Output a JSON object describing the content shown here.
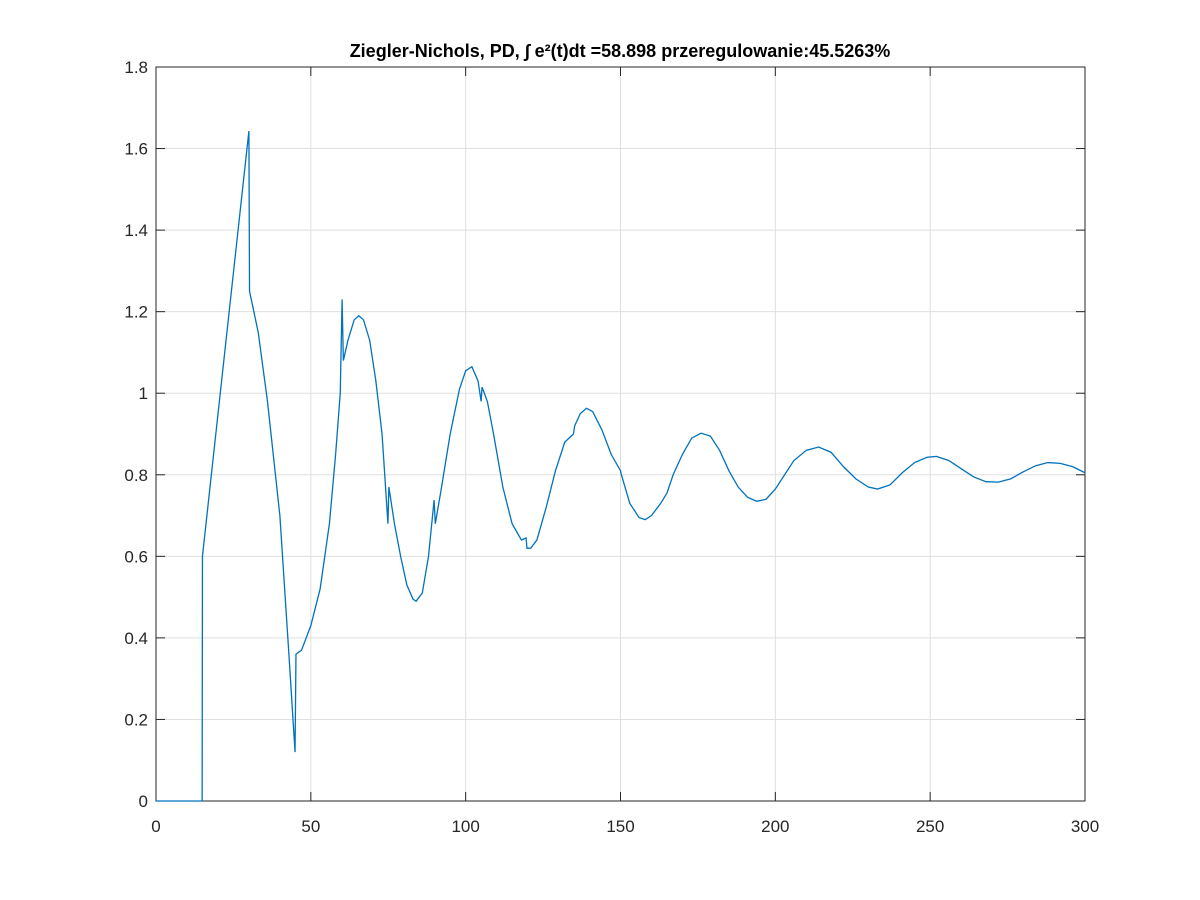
{
  "chart_data": {
    "type": "line",
    "title": "Ziegler-Nichols, PD, ∫ e²(t)dt =58.898 przeregulowanie:45.5263%",
    "x": [
      0,
      14.9,
      15,
      30,
      30.2,
      33,
      36,
      40,
      43,
      44.9,
      45.2,
      47,
      50,
      53,
      56,
      58,
      59.5,
      60.1,
      60.5,
      62,
      64,
      65.5,
      67,
      69,
      71,
      73,
      74.9,
      75.2,
      77,
      79,
      81,
      83,
      84,
      86,
      88,
      89.8,
      90.2,
      92,
      95,
      98,
      100,
      102,
      104,
      105,
      105.3,
      107,
      109,
      112,
      115,
      118,
      119.5,
      119.8,
      121,
      123,
      126,
      129,
      132,
      134.8,
      135.2,
      137,
      139,
      141,
      144,
      147,
      150,
      150.3,
      153,
      156,
      158,
      160,
      163,
      165,
      167,
      170,
      173,
      176,
      179,
      182,
      185,
      188,
      191,
      194,
      197,
      200,
      203,
      206,
      210,
      214,
      218,
      222,
      226,
      230,
      233,
      237,
      241,
      245,
      249,
      252,
      256,
      260,
      264,
      268,
      272,
      276,
      280,
      284,
      288,
      292,
      296,
      300
    ],
    "series": [
      {
        "color": "#0072bd",
        "values": [
          0,
          0,
          0.6,
          1.643,
          1.25,
          1.15,
          0.98,
          0.7,
          0.35,
          0.12,
          0.36,
          0.37,
          0.43,
          0.52,
          0.68,
          0.85,
          1.0,
          1.23,
          1.08,
          1.13,
          1.18,
          1.19,
          1.18,
          1.13,
          1.03,
          0.9,
          0.68,
          0.77,
          0.68,
          0.6,
          0.53,
          0.495,
          0.49,
          0.51,
          0.6,
          0.738,
          0.68,
          0.76,
          0.9,
          1.01,
          1.055,
          1.065,
          1.03,
          0.98,
          1.015,
          0.98,
          0.9,
          0.77,
          0.68,
          0.64,
          0.645,
          0.62,
          0.62,
          0.64,
          0.72,
          0.81,
          0.88,
          0.9,
          0.92,
          0.95,
          0.963,
          0.955,
          0.91,
          0.85,
          0.81,
          0.8,
          0.73,
          0.695,
          0.69,
          0.7,
          0.73,
          0.755,
          0.8,
          0.85,
          0.89,
          0.902,
          0.895,
          0.86,
          0.81,
          0.77,
          0.745,
          0.735,
          0.74,
          0.765,
          0.8,
          0.835,
          0.86,
          0.868,
          0.855,
          0.82,
          0.79,
          0.77,
          0.765,
          0.775,
          0.805,
          0.83,
          0.843,
          0.845,
          0.835,
          0.815,
          0.795,
          0.783,
          0.782,
          0.79,
          0.807,
          0.822,
          0.83,
          0.828,
          0.82,
          0.805
        ]
      }
    ],
    "xlim": [
      0,
      300
    ],
    "xticks": [
      0,
      50,
      100,
      150,
      200,
      250,
      300
    ],
    "ylim": [
      0,
      1.8
    ],
    "yticks": [
      0,
      0.2,
      0.4,
      0.6,
      0.8,
      1,
      1.2,
      1.4,
      1.6,
      1.8
    ],
    "grid": true
  }
}
